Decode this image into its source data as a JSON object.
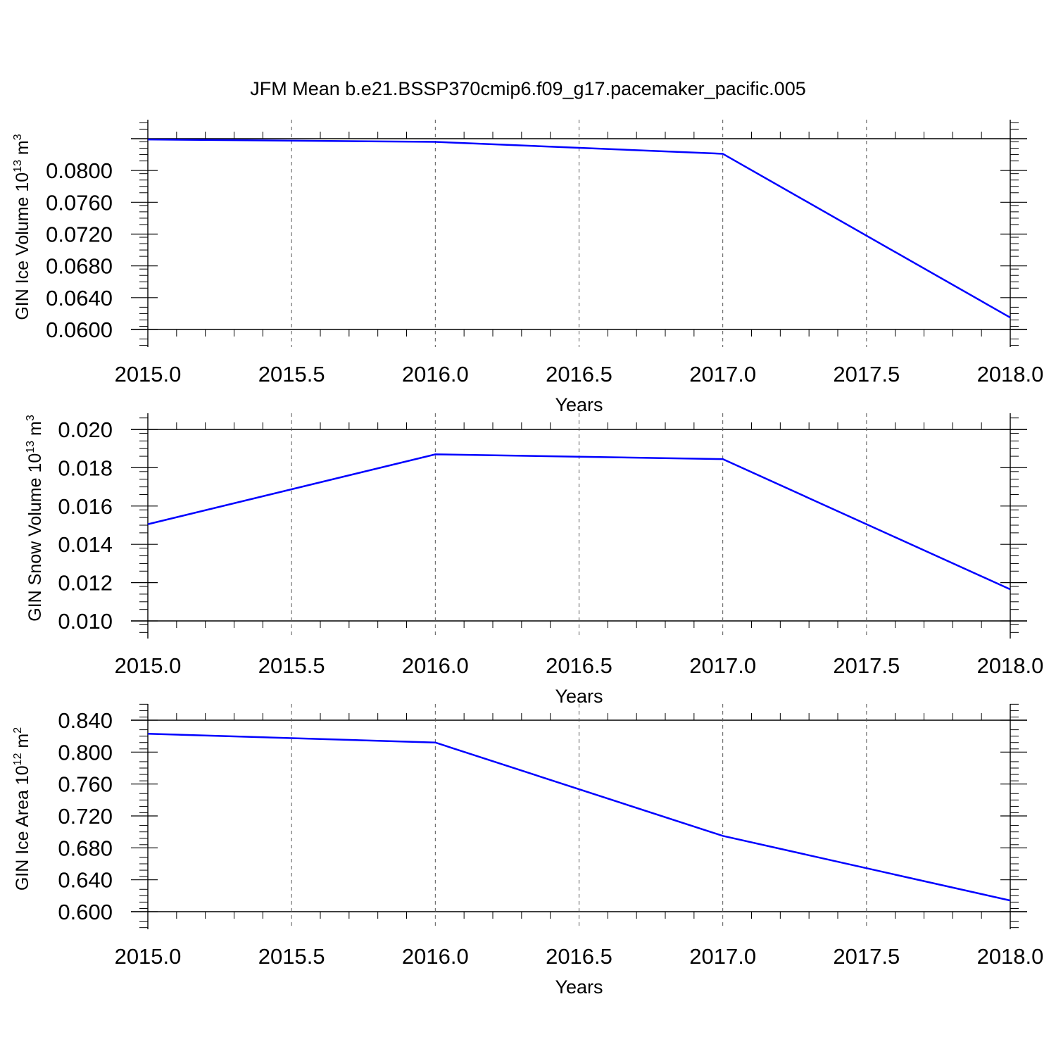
{
  "title": "JFM Mean b.e21.BSSP370cmip6.f09_g17.pacemaker_pacific.005",
  "chart_data": [
    {
      "type": "line",
      "x": [
        2015,
        2016,
        2017,
        2018
      ],
      "series": [
        {
          "values": [
            0.0839,
            0.0836,
            0.0821,
            0.0615
          ],
          "color": "#0000ff"
        }
      ],
      "xlabel": "Years",
      "ylabel": {
        "main": "GIN Ice Volume 10",
        "exp": "13",
        "unit": " m",
        "unit_exp": "3"
      },
      "xlim": [
        2015,
        2018
      ],
      "ylim": [
        0.06,
        0.084
      ],
      "xticks": [
        "2015.0",
        "2015.5",
        "2016.0",
        "2016.5",
        "2017.0",
        "2017.5",
        "2018.0"
      ],
      "yticks": [
        0.06,
        0.064,
        0.068,
        0.072,
        0.076,
        0.08
      ],
      "ytick_labels": [
        "0.0600",
        "0.0640",
        "0.0680",
        "0.0720",
        "0.0760",
        "0.0800"
      ],
      "grid": "vertical dashed"
    },
    {
      "type": "line",
      "x": [
        2015,
        2016,
        2017,
        2018
      ],
      "series": [
        {
          "values": [
            0.01505,
            0.0187,
            0.01845,
            0.01165
          ],
          "color": "#0000ff"
        }
      ],
      "xlabel": "Years",
      "ylabel": {
        "main": "GIN Snow Volume 10",
        "exp": "13",
        "unit": " m",
        "unit_exp": "3"
      },
      "xlim": [
        2015,
        2018
      ],
      "ylim": [
        0.01,
        0.02
      ],
      "xticks": [
        "2015.0",
        "2015.5",
        "2016.0",
        "2016.5",
        "2017.0",
        "2017.5",
        "2018.0"
      ],
      "yticks": [
        0.01,
        0.012,
        0.014,
        0.016,
        0.018,
        0.02
      ],
      "ytick_labels": [
        "0.010",
        "0.012",
        "0.014",
        "0.016",
        "0.018",
        "0.020"
      ],
      "grid": "vertical dashed"
    },
    {
      "type": "line",
      "x": [
        2015,
        2016,
        2017,
        2018
      ],
      "series": [
        {
          "values": [
            0.823,
            0.812,
            0.695,
            0.614
          ],
          "color": "#0000ff"
        }
      ],
      "xlabel": "Years",
      "ylabel": {
        "main": "GIN Ice Area 10",
        "exp": "12",
        "unit": " m",
        "unit_exp": "2"
      },
      "xlim": [
        2015,
        2018
      ],
      "ylim": [
        0.6,
        0.84
      ],
      "xticks": [
        "2015.0",
        "2015.5",
        "2016.0",
        "2016.5",
        "2017.0",
        "2017.5",
        "2018.0"
      ],
      "yticks": [
        0.6,
        0.64,
        0.68,
        0.72,
        0.76,
        0.8,
        0.84
      ],
      "ytick_labels": [
        "0.600",
        "0.640",
        "0.680",
        "0.720",
        "0.760",
        "0.800",
        "0.840"
      ],
      "grid": "vertical dashed"
    }
  ]
}
